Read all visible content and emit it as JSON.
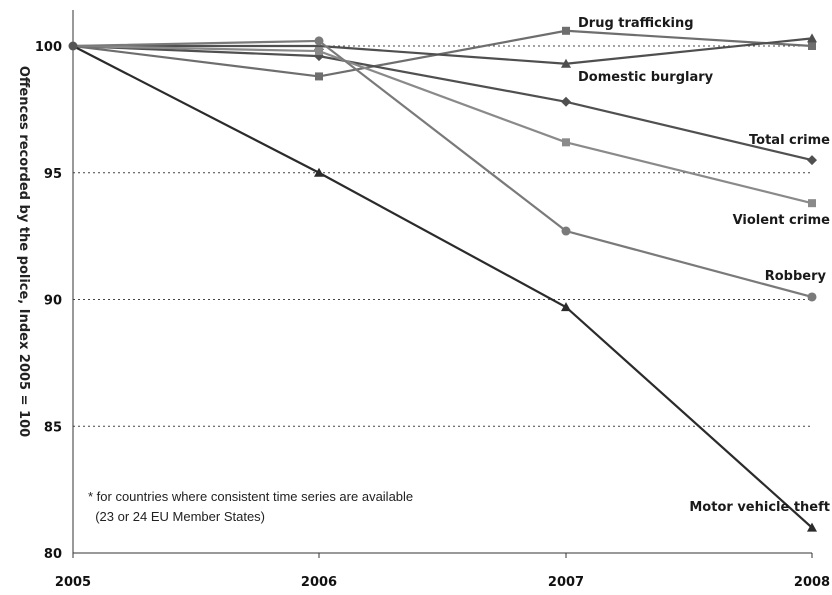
{
  "chart_data": {
    "type": "line",
    "title": "",
    "ylabel": "Offences recorded by the police, Index 2005 = 100",
    "xlabel": "",
    "x": [
      "2005",
      "2006",
      "2007",
      "2008"
    ],
    "ylim": [
      80,
      101.5
    ],
    "yticks": [
      "100",
      "95",
      "90",
      "85",
      "80"
    ],
    "grid": "horizontal dotted lines",
    "series": [
      {
        "name": "Drug trafficking",
        "values": [
          100,
          98.8,
          100.6,
          100.0
        ],
        "color": "#6e6e6e",
        "marker": "square"
      },
      {
        "name": "Domestic burglary",
        "values": [
          100,
          100.0,
          99.3,
          100.3
        ],
        "color": "#4f4f4f",
        "marker": "triangle"
      },
      {
        "name": "Total crime",
        "values": [
          100,
          99.6,
          97.8,
          95.5
        ],
        "color": "#505050",
        "marker": "diamond"
      },
      {
        "name": "Violent crime",
        "values": [
          100,
          99.8,
          96.2,
          93.8
        ],
        "color": "#8a8a8a",
        "marker": "square"
      },
      {
        "name": "Robbery",
        "values": [
          100,
          100.2,
          92.7,
          90.1
        ],
        "color": "#7a7a7a",
        "marker": "circle"
      },
      {
        "name": "Motor vehicle theft",
        "values": [
          100,
          95.0,
          89.7,
          81.0
        ],
        "color": "#2b2b2b",
        "marker": "triangle"
      }
    ]
  },
  "note": "* for countries where consistent time series are available\n  (23 or 24 EU Member States)"
}
